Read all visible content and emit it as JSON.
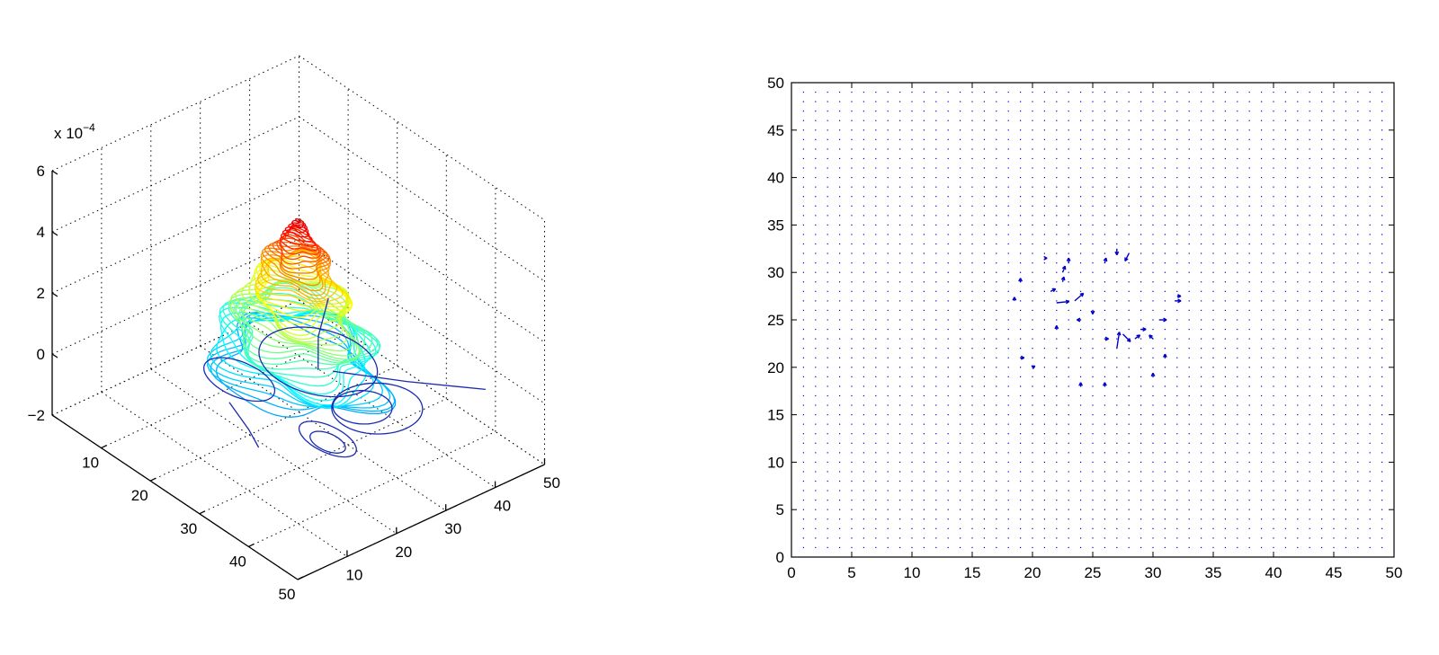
{
  "chart_data": [
    {
      "type": "contour3",
      "title": "",
      "xlabel": "",
      "ylabel": "",
      "zlabel": "",
      "x_ticks": [
        10,
        20,
        30,
        40,
        50
      ],
      "y_ticks": [
        10,
        20,
        30,
        40,
        50
      ],
      "z_ticks": [
        -2,
        0,
        2,
        4,
        6
      ],
      "xlim": [
        0,
        50
      ],
      "ylim": [
        0,
        50
      ],
      "zlim": [
        -2,
        6
      ],
      "z_scale_label": "x 10",
      "z_scale_exponent": "−4",
      "grid": true,
      "colormap": "jet",
      "peak": {
        "x": 24,
        "y": 26,
        "z": 5.0
      }
    },
    {
      "type": "quiver",
      "title": "",
      "xlabel": "",
      "ylabel": "",
      "x_ticks": [
        0,
        5,
        10,
        15,
        20,
        25,
        30,
        35,
        40,
        45,
        50
      ],
      "y_ticks": [
        0,
        5,
        10,
        15,
        20,
        25,
        30,
        35,
        40,
        45,
        50
      ],
      "xlim": [
        0,
        50
      ],
      "ylim": [
        0,
        50
      ],
      "grid": false,
      "arrow_color": "#0000cc",
      "vectors": [
        {
          "x": 22.0,
          "y": 26.8,
          "u": 1.0,
          "v": 0.1
        },
        {
          "x": 23.5,
          "y": 27.0,
          "u": 0.7,
          "v": 0.6
        },
        {
          "x": 27.0,
          "y": 22.0,
          "u": 0.2,
          "v": 1.3
        },
        {
          "x": 27.5,
          "y": 23.5,
          "u": 0.6,
          "v": -0.6
        },
        {
          "x": 28.0,
          "y": 32.0,
          "u": -0.3,
          "v": -0.6
        },
        {
          "x": 27.0,
          "y": 32.5,
          "u": 0.0,
          "v": -0.5
        },
        {
          "x": 30.5,
          "y": 25.0,
          "u": 0.6,
          "v": 0.0
        },
        {
          "x": 31.8,
          "y": 27.0,
          "u": 0.5,
          "v": 0.0
        },
        {
          "x": 22.5,
          "y": 30.0,
          "u": 0.2,
          "v": 0.5
        },
        {
          "x": 22.5,
          "y": 29.0,
          "u": 0.1,
          "v": 0.4
        },
        {
          "x": 21.5,
          "y": 28.0,
          "u": 0.4,
          "v": 0.2
        },
        {
          "x": 23.0,
          "y": 31.0,
          "u": 0.0,
          "v": 0.4
        },
        {
          "x": 26.0,
          "y": 31.0,
          "u": 0.1,
          "v": 0.4
        },
        {
          "x": 29.0,
          "y": 24.0,
          "u": 0.4,
          "v": 0.0
        },
        {
          "x": 28.5,
          "y": 23.0,
          "u": 0.4,
          "v": 0.3
        },
        {
          "x": 30.0,
          "y": 23.0,
          "u": -0.3,
          "v": 0.3
        },
        {
          "x": 26.0,
          "y": 23.0,
          "u": 0.3,
          "v": 0.0
        },
        {
          "x": 31.0,
          "y": 21.0,
          "u": 0.0,
          "v": 0.3
        },
        {
          "x": 19.0,
          "y": 21.0,
          "u": 0.3,
          "v": 0.0
        },
        {
          "x": 20.0,
          "y": 20.0,
          "u": 0.2,
          "v": 0.1
        },
        {
          "x": 19.0,
          "y": 29.0,
          "u": 0.0,
          "v": 0.3
        },
        {
          "x": 18.5,
          "y": 27.0,
          "u": 0.0,
          "v": 0.3
        },
        {
          "x": 22.0,
          "y": 24.0,
          "u": 0.0,
          "v": 0.3
        },
        {
          "x": 24.0,
          "y": 25.0,
          "u": -0.3,
          "v": 0.0
        },
        {
          "x": 25.0,
          "y": 26.0,
          "u": 0.0,
          "v": -0.3
        },
        {
          "x": 24.0,
          "y": 18.0,
          "u": 0.0,
          "v": 0.3
        },
        {
          "x": 26.0,
          "y": 18.0,
          "u": 0.0,
          "v": 0.3
        },
        {
          "x": 30.0,
          "y": 19.0,
          "u": 0.0,
          "v": 0.3
        },
        {
          "x": 21.0,
          "y": 31.5,
          "u": 0.2,
          "v": 0.0
        },
        {
          "x": 32.0,
          "y": 27.5,
          "u": 0.3,
          "v": 0.0
        }
      ]
    }
  ]
}
